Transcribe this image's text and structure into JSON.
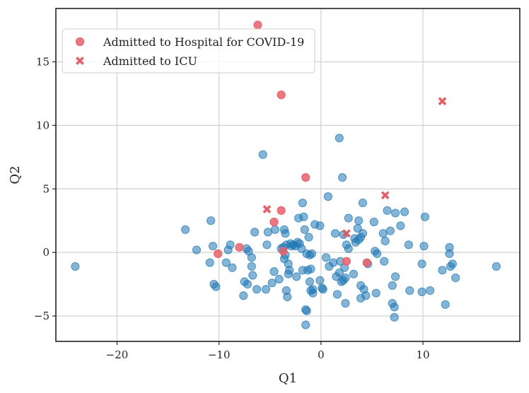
{
  "chart_data": {
    "type": "scatter",
    "title": "",
    "xlabel": "Q1",
    "ylabel": "Q2",
    "xlim": [
      -26,
      19.5
    ],
    "ylim": [
      -7,
      19.2
    ],
    "xticks": [
      -20,
      -10,
      0,
      10
    ],
    "yticks": [
      -5,
      0,
      5,
      10,
      15
    ],
    "xtick_labels": [
      "−20",
      "−10",
      "0",
      "10"
    ],
    "ytick_labels": [
      "−5",
      "0",
      "5",
      "10",
      "15"
    ],
    "grid": true,
    "legend_position": "top-left",
    "colors": {
      "blue": "#1f77b4",
      "red": "#d62728",
      "grid": "#cfcfcf",
      "spine": "#222222"
    },
    "series": [
      {
        "name": "Background",
        "marker": "circle",
        "color": "#1f77b4",
        "in_legend": false,
        "points": [
          [
            -24.1,
            -1.1
          ],
          [
            -13.3,
            1.8
          ],
          [
            -12.2,
            0.2
          ],
          [
            -10.8,
            2.5
          ],
          [
            -10.6,
            0.5
          ],
          [
            -10.9,
            -0.8
          ],
          [
            -10.5,
            -2.5
          ],
          [
            -10.3,
            -2.7
          ],
          [
            -9.3,
            -0.8
          ],
          [
            -9.1,
            0.2
          ],
          [
            -8.9,
            0.6
          ],
          [
            -8.7,
            -1.2
          ],
          [
            -7.5,
            -2.3
          ],
          [
            -7.6,
            -3.4
          ],
          [
            -7.3,
            0.3
          ],
          [
            -7.2,
            -2.5
          ],
          [
            -7.1,
            0.1
          ],
          [
            -6.8,
            -0.4
          ],
          [
            -6.8,
            -1.1
          ],
          [
            -6.7,
            -1.8
          ],
          [
            -6.5,
            1.6
          ],
          [
            -6.3,
            -2.9
          ],
          [
            -5.7,
            7.7
          ],
          [
            -5.4,
            -2.9
          ],
          [
            -5.3,
            0.6
          ],
          [
            -5.2,
            1.6
          ],
          [
            -4.8,
            -2.4
          ],
          [
            -4.6,
            -1.5
          ],
          [
            -4.5,
            1.8
          ],
          [
            -4.1,
            -2.1
          ],
          [
            -3.9,
            0.3
          ],
          [
            -3.7,
            0.4
          ],
          [
            -3.6,
            1.8
          ],
          [
            -3.5,
            1.5
          ],
          [
            -3.6,
            -0.5
          ],
          [
            -3.5,
            -0.2
          ],
          [
            -3.4,
            0.6
          ],
          [
            -3.3,
            -3.5
          ],
          [
            -3.4,
            -3.0
          ],
          [
            -3.2,
            -0.9
          ],
          [
            -3.1,
            -1.4
          ],
          [
            -3.2,
            -1.7
          ],
          [
            -3.0,
            0.7
          ],
          [
            -2.9,
            0.5
          ],
          [
            -2.7,
            0.6
          ],
          [
            -2.5,
            0.5
          ],
          [
            -2.4,
            -1.9
          ],
          [
            -2.3,
            0.8
          ],
          [
            -2.2,
            2.7
          ],
          [
            -2.1,
            0.7
          ],
          [
            -1.9,
            0.3
          ],
          [
            -1.8,
            -1.4
          ],
          [
            -1.8,
            3.9
          ],
          [
            -1.7,
            2.8
          ],
          [
            -1.6,
            1.8
          ],
          [
            -1.5,
            -4.5
          ],
          [
            -1.4,
            -4.6
          ],
          [
            -1.5,
            -5.7
          ],
          [
            -1.4,
            -0.1
          ],
          [
            -1.3,
            -1.4
          ],
          [
            -1.2,
            1.2
          ],
          [
            -1.1,
            -0.2
          ],
          [
            -1.1,
            -2.3
          ],
          [
            -1.0,
            -3.0
          ],
          [
            -1.0,
            -1.3
          ],
          [
            -0.9,
            -0.1
          ],
          [
            -0.8,
            -3.2
          ],
          [
            -0.8,
            -2.9
          ],
          [
            -0.6,
            2.2
          ],
          [
            -0.1,
            2.1
          ],
          [
            -0.1,
            -2.2
          ],
          [
            0.1,
            -2.8
          ],
          [
            0.2,
            -2.9
          ],
          [
            0.5,
            -0.4
          ],
          [
            0.7,
            4.4
          ],
          [
            0.8,
            -1.1
          ],
          [
            1.2,
            -0.8
          ],
          [
            1.4,
            1.5
          ],
          [
            1.5,
            -1.9
          ],
          [
            1.6,
            -3.3
          ],
          [
            1.8,
            9.0
          ],
          [
            1.8,
            -1.6
          ],
          [
            1.9,
            -0.7
          ],
          [
            2.0,
            -2.3
          ],
          [
            2.1,
            5.9
          ],
          [
            2.2,
            1.4
          ],
          [
            2.2,
            -2.2
          ],
          [
            2.3,
            -1.2
          ],
          [
            2.4,
            -4.0
          ],
          [
            2.4,
            -2.0
          ],
          [
            2.5,
            0.6
          ],
          [
            2.7,
            2.7
          ],
          [
            2.7,
            0.3
          ],
          [
            3.2,
            -1.7
          ],
          [
            3.3,
            1.1
          ],
          [
            3.4,
            0.8
          ],
          [
            3.6,
            1.9
          ],
          [
            3.7,
            1.0
          ],
          [
            3.7,
            2.5
          ],
          [
            3.9,
            -2.6
          ],
          [
            3.9,
            -3.6
          ],
          [
            3.9,
            1.2
          ],
          [
            4.1,
            1.5
          ],
          [
            4.1,
            3.9
          ],
          [
            4.2,
            -2.9
          ],
          [
            4.4,
            -3.4
          ],
          [
            4.6,
            -0.9
          ],
          [
            5.2,
            2.4
          ],
          [
            5.3,
            0.1
          ],
          [
            5.4,
            -3.2
          ],
          [
            5.5,
            -0.1
          ],
          [
            6.1,
            1.5
          ],
          [
            6.2,
            -0.7
          ],
          [
            6.3,
            0.9
          ],
          [
            6.5,
            3.3
          ],
          [
            6.8,
            1.7
          ],
          [
            7.0,
            -2.6
          ],
          [
            7.0,
            -4.0
          ],
          [
            7.2,
            -4.3
          ],
          [
            7.2,
            -5.1
          ],
          [
            7.3,
            3.1
          ],
          [
            7.3,
            -1.9
          ],
          [
            7.8,
            2.1
          ],
          [
            8.2,
            3.2
          ],
          [
            8.6,
            0.6
          ],
          [
            8.7,
            -3.0
          ],
          [
            9.9,
            -0.9
          ],
          [
            9.9,
            -3.1
          ],
          [
            10.1,
            0.5
          ],
          [
            10.2,
            2.8
          ],
          [
            10.7,
            -3.0
          ],
          [
            11.9,
            -1.4
          ],
          [
            12.2,
            -4.1
          ],
          [
            12.6,
            -0.1
          ],
          [
            12.6,
            0.4
          ],
          [
            12.7,
            -1.1
          ],
          [
            12.9,
            -0.9
          ],
          [
            13.2,
            -2.0
          ],
          [
            17.2,
            -1.1
          ]
        ]
      },
      {
        "name": "Admitted to Hospital for COVID-19",
        "marker": "circle",
        "color": "#e8606a",
        "in_legend": true,
        "points": [
          [
            -6.2,
            17.9
          ],
          [
            -3.9,
            12.4
          ],
          [
            -1.5,
            5.9
          ],
          [
            -3.9,
            3.3
          ],
          [
            -4.6,
            2.4
          ],
          [
            -10.1,
            -0.1
          ],
          [
            -8.0,
            0.4
          ],
          [
            -3.7,
            0.1
          ],
          [
            2.5,
            -0.7
          ],
          [
            4.5,
            -0.8
          ]
        ]
      },
      {
        "name": "Admitted to ICU",
        "marker": "x",
        "color": "#e05058",
        "in_legend": true,
        "points": [
          [
            11.9,
            11.9
          ],
          [
            -5.3,
            3.4
          ],
          [
            6.3,
            4.5
          ],
          [
            2.5,
            1.5
          ]
        ]
      }
    ]
  }
}
